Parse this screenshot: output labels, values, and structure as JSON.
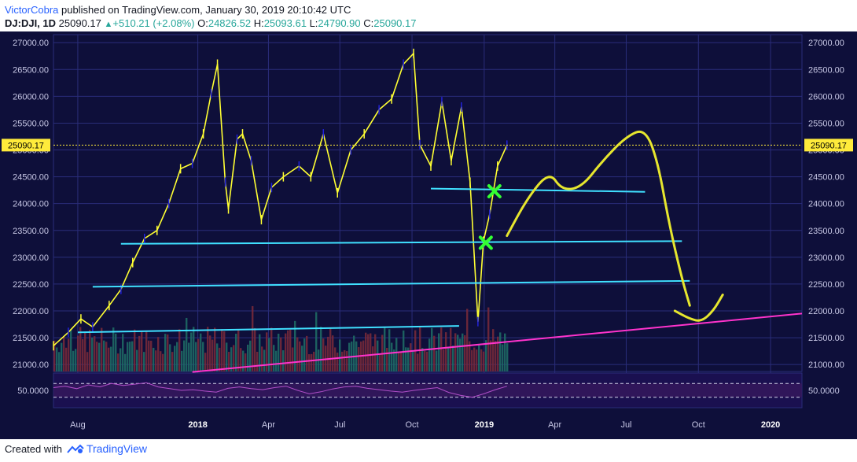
{
  "header": {
    "user": "VictorCobra",
    "published_text": "published on TradingView.com, January 30, 2019 20:10:42 UTC"
  },
  "ohlc": {
    "symbol": "DJ:DJI, 1D",
    "last": "25090.17",
    "change": "+510.21 (+2.08%)",
    "o_label": "O:",
    "o_value": "24826.52",
    "h_label": "H:",
    "h_value": "25093.61",
    "l_label": "L:",
    "l_value": "24790.90",
    "c_label": "C:",
    "c_value": "25090.17"
  },
  "footer": {
    "created_with": "Created with",
    "brand": "TradingView"
  },
  "colors": {
    "background": "#0e0f3a",
    "grid": "#2a2d7a",
    "price_up": "#ffff33",
    "price_down": "#2222dd",
    "support_lines": "#40e0ff",
    "trendline": "#ff33cc",
    "forecast": "#e6e62e",
    "markers": "#33ff33",
    "last_price": "#ffeb3b",
    "rsi": "#b04fc8"
  },
  "chart_data": {
    "type": "line",
    "symbol": "DJ:DJI",
    "interval": "1D",
    "last_price_label": "25090.17",
    "y_ticks": [
      "27000.00",
      "26500.00",
      "26000.00",
      "25500.00",
      "25000.00",
      "24500.00",
      "24000.00",
      "23500.00",
      "23000.00",
      "22500.00",
      "22000.00",
      "21500.00",
      "21000.00"
    ],
    "y_tick_values": [
      27000,
      26500,
      26000,
      25500,
      25000,
      24500,
      24000,
      23500,
      23000,
      22500,
      22000,
      21500,
      21000
    ],
    "ylim": [
      20870,
      27150
    ],
    "x_ticks": [
      "Aug",
      "2018",
      "Apr",
      "Jul",
      "Oct",
      "2019",
      "Apr",
      "Jul",
      "Oct",
      "2020"
    ],
    "x_tick_dates": [
      "2017-08-01",
      "2018-01-01",
      "2018-04-01",
      "2018-07-01",
      "2018-10-01",
      "2019-01-01",
      "2019-04-01",
      "2019-07-01",
      "2019-10-01",
      "2020-01-01"
    ],
    "x_range": [
      "2017-07-01",
      "2020-02-10"
    ],
    "price_series": {
      "dates": [
        "2017-07-01",
        "2017-07-20",
        "2017-08-05",
        "2017-08-20",
        "2017-09-10",
        "2017-09-25",
        "2017-10-10",
        "2017-10-25",
        "2017-11-10",
        "2017-11-25",
        "2017-12-10",
        "2017-12-25",
        "2018-01-08",
        "2018-01-18",
        "2018-01-26",
        "2018-02-05",
        "2018-02-09",
        "2018-02-20",
        "2018-02-27",
        "2018-03-10",
        "2018-03-23",
        "2018-04-05",
        "2018-04-20",
        "2018-05-10",
        "2018-05-25",
        "2018-06-10",
        "2018-06-28",
        "2018-07-15",
        "2018-08-01",
        "2018-08-20",
        "2018-09-05",
        "2018-09-20",
        "2018-10-03",
        "2018-10-11",
        "2018-10-25",
        "2018-11-08",
        "2018-11-20",
        "2018-12-03",
        "2018-12-14",
        "2018-12-24",
        "2018-12-31",
        "2019-01-08",
        "2019-01-18",
        "2019-01-30"
      ],
      "close": [
        21350,
        21600,
        21850,
        21700,
        22100,
        22400,
        22900,
        23350,
        23500,
        24000,
        24650,
        24750,
        25300,
        26050,
        26600,
        24400,
        23900,
        25200,
        25300,
        24800,
        23700,
        24300,
        24500,
        24700,
        24500,
        25300,
        24200,
        25000,
        25300,
        25750,
        25950,
        26600,
        26800,
        25100,
        24700,
        25900,
        24800,
        25800,
        24400,
        21800,
        23300,
        23800,
        24700,
        25090.17
      ]
    },
    "support_lines": [
      {
        "from": [
          "2017-08-01",
          21600
        ],
        "to": [
          "2018-11-30",
          21720
        ]
      },
      {
        "from": [
          "2017-08-20",
          22450
        ],
        "to": [
          "2019-09-20",
          22560
        ]
      },
      {
        "from": [
          "2017-09-25",
          23250
        ],
        "to": [
          "2019-09-10",
          23300
        ]
      },
      {
        "from": [
          "2018-10-25",
          24280
        ],
        "to": [
          "2019-07-25",
          24220
        ]
      }
    ],
    "trend_line": {
      "from": [
        "2017-12-25",
        20860
      ],
      "to": [
        "2020-02-10",
        21950
      ]
    },
    "forecast_path": {
      "dates": [
        "2019-01-30",
        "2019-02-25",
        "2019-03-25",
        "2019-04-10",
        "2019-05-05",
        "2019-06-01",
        "2019-07-01",
        "2019-07-25",
        "2019-08-10",
        "2019-08-25",
        "2019-09-10",
        "2019-09-20"
      ],
      "values": [
        23400,
        24100,
        24600,
        24250,
        24300,
        24800,
        25250,
        25400,
        24800,
        23600,
        22600,
        22100
      ]
    },
    "rebound_path": {
      "dates": [
        "2019-09-01",
        "2019-09-20",
        "2019-10-05",
        "2019-10-20",
        "2019-11-01"
      ],
      "values": [
        22000,
        21850,
        21800,
        22000,
        22300
      ]
    },
    "markers": [
      {
        "date": "2019-01-03",
        "value": 23270,
        "symbol": "x"
      },
      {
        "date": "2019-01-14",
        "value": 24230,
        "symbol": "x"
      }
    ],
    "volume": {
      "date_range": [
        "2017-07-01",
        "2019-01-30"
      ],
      "relative_level": 0.55
    },
    "rsi": {
      "label": "50.0000",
      "level": 50,
      "upper_band": 70,
      "lower_band": 30,
      "values": [
        58,
        62,
        55,
        66,
        60,
        70,
        64,
        68,
        72,
        60,
        55,
        50,
        52,
        48,
        45,
        56,
        60,
        55,
        52,
        58,
        62,
        50,
        40,
        46,
        54,
        60,
        62,
        56,
        52,
        48,
        45,
        50,
        54,
        58,
        44,
        36,
        30,
        40,
        52,
        62
      ]
    }
  }
}
